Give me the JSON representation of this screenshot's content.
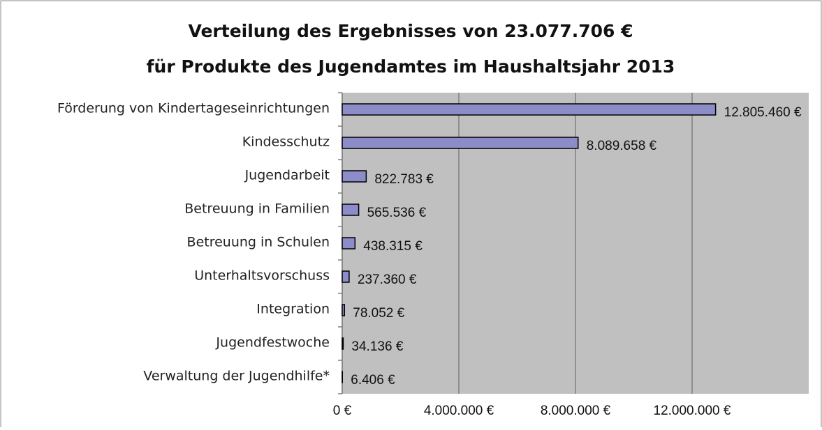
{
  "chart_data": {
    "type": "bar",
    "orientation": "horizontal",
    "title": [
      "Verteilung des Ergebnisses von 23.077.706 €",
      "für Produkte des Jugendamtes im Haushaltsjahr 2013"
    ],
    "categories": [
      "Förderung von Kindertageseinrichtungen",
      "Kindesschutz",
      "Jugendarbeit",
      "Betreuung in Familien",
      "Betreuung in Schulen",
      "Unterhaltsvorschuss",
      "Integration",
      "Jugendfestwoche",
      "Verwaltung der Jugendhilfe*"
    ],
    "values": [
      12805460,
      8089658,
      822783,
      565536,
      438315,
      237360,
      78052,
      34136,
      6406
    ],
    "value_labels": [
      "12.805.460 €",
      "8.089.658 €",
      "822.783 €",
      "565.536 €",
      "438.315 €",
      "237.360 €",
      "78.052 €",
      "34.136 €",
      "6.406 €"
    ],
    "color": "#8c8cc8",
    "xlim": [
      0,
      16000000
    ],
    "xticks": [
      {
        "value": 0,
        "label": "0 €"
      },
      {
        "value": 4000000,
        "label": "4.000.000 €"
      },
      {
        "value": 8000000,
        "label": "8.000.000 €"
      },
      {
        "value": 12000000,
        "label": "12.000.000 €"
      }
    ],
    "grid": true
  }
}
